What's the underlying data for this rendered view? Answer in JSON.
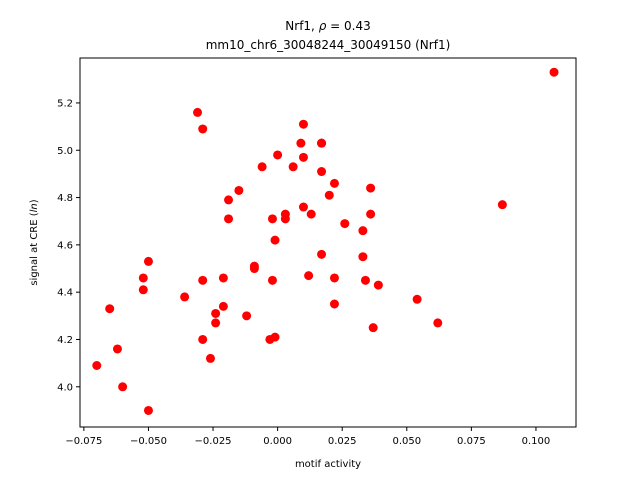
{
  "chart_data": {
    "type": "scatter",
    "title_line1_prefix": "Nrf1, ",
    "title_line1_rho": "ρ",
    "title_line1_suffix": " = 0.43",
    "title_line2": "mm10_chr6_30048244_30049150 (Nrf1)",
    "xlabel": "motif activity",
    "ylabel_prefix": "signal at CRE (",
    "ylabel_italic": "ln",
    "ylabel_suffix": ")",
    "xlim": [
      -0.0765,
      0.1155
    ],
    "ylim": [
      3.83,
      5.39
    ],
    "xticks": [
      -0.075,
      -0.05,
      -0.025,
      0.0,
      0.025,
      0.05,
      0.075,
      0.1
    ],
    "xtick_labels": [
      "−0.075",
      "−0.050",
      "−0.025",
      "0.000",
      "0.025",
      "0.050",
      "0.075",
      "0.100"
    ],
    "yticks": [
      4.0,
      4.2,
      4.4,
      4.6,
      4.8,
      5.0,
      5.2
    ],
    "ytick_labels": [
      "4.0",
      "4.2",
      "4.4",
      "4.6",
      "4.8",
      "5.0",
      "5.2"
    ],
    "marker_color": "#ff0000",
    "points": [
      {
        "x": -0.07,
        "y": 4.09
      },
      {
        "x": -0.065,
        "y": 4.33
      },
      {
        "x": -0.062,
        "y": 4.16
      },
      {
        "x": -0.06,
        "y": 4.0
      },
      {
        "x": -0.052,
        "y": 4.46
      },
      {
        "x": -0.052,
        "y": 4.41
      },
      {
        "x": -0.05,
        "y": 4.53
      },
      {
        "x": -0.05,
        "y": 3.9
      },
      {
        "x": -0.036,
        "y": 4.38
      },
      {
        "x": -0.031,
        "y": 5.16
      },
      {
        "x": -0.029,
        "y": 5.09
      },
      {
        "x": -0.029,
        "y": 4.45
      },
      {
        "x": -0.029,
        "y": 4.2
      },
      {
        "x": -0.026,
        "y": 4.12
      },
      {
        "x": -0.024,
        "y": 4.31
      },
      {
        "x": -0.024,
        "y": 4.27
      },
      {
        "x": -0.021,
        "y": 4.46
      },
      {
        "x": -0.021,
        "y": 4.34
      },
      {
        "x": -0.019,
        "y": 4.79
      },
      {
        "x": -0.019,
        "y": 4.71
      },
      {
        "x": -0.015,
        "y": 4.83
      },
      {
        "x": -0.012,
        "y": 4.3
      },
      {
        "x": -0.009,
        "y": 4.51
      },
      {
        "x": -0.009,
        "y": 4.5
      },
      {
        "x": -0.006,
        "y": 4.93
      },
      {
        "x": -0.003,
        "y": 4.2
      },
      {
        "x": -0.002,
        "y": 4.45
      },
      {
        "x": -0.002,
        "y": 4.71
      },
      {
        "x": -0.001,
        "y": 4.62
      },
      {
        "x": -0.001,
        "y": 4.21
      },
      {
        "x": 0.0,
        "y": 4.98
      },
      {
        "x": 0.003,
        "y": 4.73
      },
      {
        "x": 0.003,
        "y": 4.71
      },
      {
        "x": 0.006,
        "y": 4.93
      },
      {
        "x": 0.009,
        "y": 5.03
      },
      {
        "x": 0.01,
        "y": 5.11
      },
      {
        "x": 0.01,
        "y": 4.97
      },
      {
        "x": 0.01,
        "y": 4.76
      },
      {
        "x": 0.012,
        "y": 4.47
      },
      {
        "x": 0.013,
        "y": 4.73
      },
      {
        "x": 0.017,
        "y": 5.03
      },
      {
        "x": 0.017,
        "y": 5.03
      },
      {
        "x": 0.017,
        "y": 4.91
      },
      {
        "x": 0.017,
        "y": 4.56
      },
      {
        "x": 0.02,
        "y": 4.81
      },
      {
        "x": 0.022,
        "y": 4.86
      },
      {
        "x": 0.022,
        "y": 4.46
      },
      {
        "x": 0.022,
        "y": 4.35
      },
      {
        "x": 0.026,
        "y": 4.69
      },
      {
        "x": 0.033,
        "y": 4.66
      },
      {
        "x": 0.033,
        "y": 4.55
      },
      {
        "x": 0.034,
        "y": 4.45
      },
      {
        "x": 0.036,
        "y": 4.84
      },
      {
        "x": 0.036,
        "y": 4.73
      },
      {
        "x": 0.037,
        "y": 4.25
      },
      {
        "x": 0.039,
        "y": 4.43
      },
      {
        "x": 0.054,
        "y": 4.37
      },
      {
        "x": 0.062,
        "y": 4.27
      },
      {
        "x": 0.087,
        "y": 4.77
      },
      {
        "x": 0.107,
        "y": 5.33
      }
    ]
  }
}
